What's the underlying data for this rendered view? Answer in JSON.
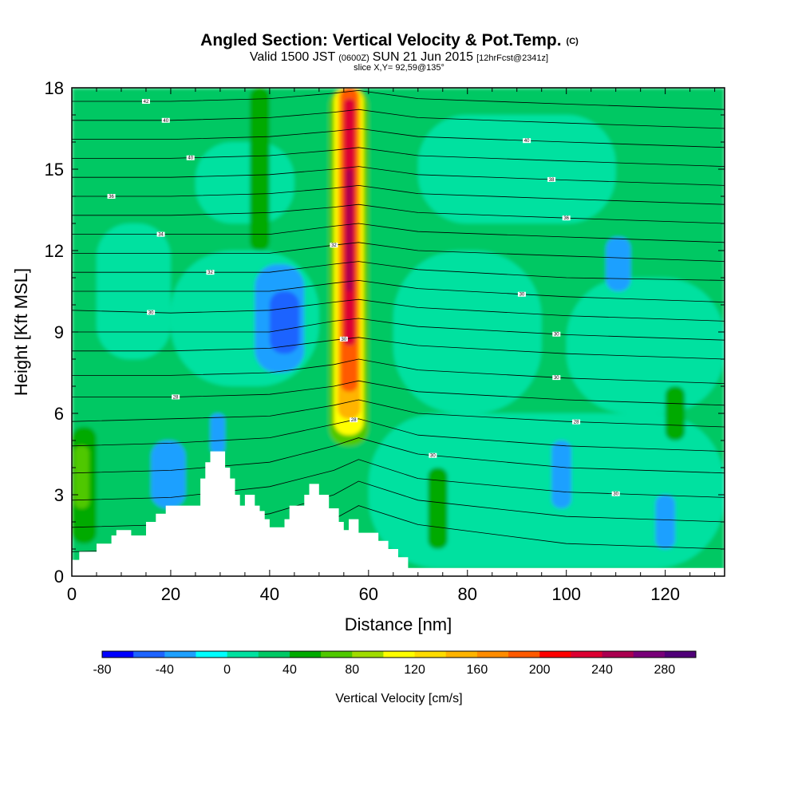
{
  "title": {
    "main": "Angled Section: Vertical Velocity & Pot.Temp.",
    "main_suffix": "(C)",
    "valid_prefix": "Valid 1500 JST",
    "valid_zulu": "(0600Z)",
    "valid_date": "SUN 21 Jun 2015",
    "forecast": "[12hrFcst@2341z]",
    "slice": "slice X,Y= 92,59@135°"
  },
  "chart_data": {
    "type": "heatmap",
    "xlabel": "Distance [nm]",
    "ylabel": "Height [Kft MSL]",
    "xlim": [
      0,
      132
    ],
    "ylim": [
      0,
      18
    ],
    "x_ticks": [
      "0",
      "20",
      "40",
      "60",
      "80",
      "100",
      "120"
    ],
    "x_tick_values": [
      0,
      20,
      40,
      60,
      80,
      100,
      120
    ],
    "y_ticks": [
      "0",
      "3",
      "6",
      "9",
      "12",
      "15",
      "18"
    ],
    "y_tick_values": [
      0,
      3,
      6,
      9,
      12,
      15,
      18
    ],
    "colorbar": {
      "label": "Vertical Velocity [cm/s]",
      "min": -80,
      "max": 300,
      "step": 20,
      "tick_labels": [
        "-80",
        "-40",
        "0",
        "40",
        "80",
        "120",
        "160",
        "200",
        "240",
        "280"
      ],
      "tick_values": [
        -80,
        -40,
        0,
        40,
        80,
        120,
        160,
        200,
        240,
        280
      ],
      "colors": [
        "#0000ff",
        "#1e64ff",
        "#1ea0ff",
        "#00ffff",
        "#00e1a0",
        "#00c864",
        "#00aa00",
        "#50c800",
        "#a0dc00",
        "#ffff00",
        "#ffdc00",
        "#ffb400",
        "#ff8c00",
        "#ff5a00",
        "#ff0000",
        "#dc0032",
        "#aa0050",
        "#780078",
        "#500078"
      ]
    },
    "cells": [
      {
        "x0": 0,
        "x1": 132,
        "y0": 0,
        "y1": 18,
        "v": 30
      },
      {
        "x0": 5,
        "x1": 20,
        "y0": 8,
        "y1": 13,
        "v": 10
      },
      {
        "x0": 20,
        "x1": 50,
        "y0": 7,
        "y1": 12,
        "v": 10
      },
      {
        "x0": 25,
        "x1": 45,
        "y0": 13,
        "y1": 16,
        "v": 10
      },
      {
        "x0": 60,
        "x1": 132,
        "y0": 0.3,
        "y1": 6,
        "v": 10
      },
      {
        "x0": 65,
        "x1": 95,
        "y0": 6,
        "y1": 12,
        "v": 10
      },
      {
        "x0": 100,
        "x1": 132,
        "y0": 6,
        "y1": 11,
        "v": 10
      },
      {
        "x0": 70,
        "x1": 110,
        "y0": 13,
        "y1": 17,
        "v": 10
      },
      {
        "x0": 0,
        "x1": 10,
        "y0": 0.8,
        "y1": 6.5,
        "v": 30
      },
      {
        "x0": 0,
        "x1": 5,
        "y0": 1.2,
        "y1": 5.5,
        "v": 50
      },
      {
        "x0": 0.5,
        "x1": 3.5,
        "y0": 2.5,
        "y1": 4.8,
        "v": 70
      },
      {
        "x0": 37,
        "x1": 47,
        "y0": 7.5,
        "y1": 11.5,
        "v": -30
      },
      {
        "x0": 40,
        "x1": 46,
        "y0": 8.2,
        "y1": 10.5,
        "v": -50
      },
      {
        "x0": 16,
        "x1": 23,
        "y0": 2.5,
        "y1": 5,
        "v": -30
      },
      {
        "x0": 108,
        "x1": 113,
        "y0": 10.5,
        "y1": 12.5,
        "v": -30
      },
      {
        "x0": 97,
        "x1": 101,
        "y0": 2.5,
        "y1": 5,
        "v": -30
      },
      {
        "x0": 118,
        "x1": 122,
        "y0": 1,
        "y1": 3,
        "v": -30
      },
      {
        "x0": 28,
        "x1": 31,
        "y0": 4.5,
        "y1": 6,
        "v": -30
      },
      {
        "x0": 36,
        "x1": 40,
        "y0": 12,
        "y1": 18,
        "v": 50
      },
      {
        "x0": 72,
        "x1": 76,
        "y0": 1,
        "y1": 4,
        "v": 50
      },
      {
        "x0": 120,
        "x1": 124,
        "y0": 5,
        "y1": 7,
        "v": 50
      },
      {
        "x0": 52,
        "x1": 60,
        "y0": 4.8,
        "y1": 18,
        "v": 70
      },
      {
        "x0": 53,
        "x1": 59,
        "y0": 5.2,
        "y1": 18,
        "v": 110
      },
      {
        "x0": 53.8,
        "x1": 58.4,
        "y0": 5.8,
        "y1": 18,
        "v": 150
      },
      {
        "x0": 54.4,
        "x1": 57.8,
        "y0": 6.8,
        "y1": 18,
        "v": 190
      },
      {
        "x0": 55,
        "x1": 57.3,
        "y0": 8.5,
        "y1": 17.6,
        "v": 230
      },
      {
        "x0": 55.5,
        "x1": 56.8,
        "y0": 10.5,
        "y1": 15,
        "v": 250
      }
    ],
    "isentropes": {
      "levels": [
        {
          "x": [
            0,
            20,
            40,
            53,
            58,
            70,
            100,
            132
          ],
          "y": [
            0.9,
            1.0,
            1.4,
            2.1,
            2.6,
            1.9,
            1.2,
            1.0
          ],
          "label": "",
          "label_x": null
        },
        {
          "x": [
            0,
            20,
            40,
            53,
            58,
            70,
            100,
            132
          ],
          "y": [
            1.8,
            1.9,
            2.3,
            3.0,
            3.5,
            2.8,
            2.2,
            2.0
          ],
          "label": "",
          "label_x": null
        },
        {
          "x": [
            0,
            20,
            40,
            53,
            58,
            70,
            100,
            132
          ],
          "y": [
            2.8,
            2.9,
            3.3,
            3.9,
            4.3,
            3.6,
            3.1,
            2.9
          ],
          "label": "30",
          "label_x": 110
        },
        {
          "x": [
            0,
            20,
            40,
            53,
            58,
            70,
            100,
            132
          ],
          "y": [
            3.8,
            3.9,
            4.2,
            4.8,
            5.1,
            4.5,
            4.0,
            3.8
          ],
          "label": "30",
          "label_x": 73
        },
        {
          "x": [
            0,
            20,
            40,
            53,
            58,
            70,
            100,
            132
          ],
          "y": [
            4.8,
            4.9,
            5.1,
            5.6,
            5.8,
            5.2,
            4.8,
            4.6
          ],
          "label": "28",
          "label_x": 57
        },
        {
          "x": [
            0,
            20,
            40,
            53,
            58,
            70,
            100,
            132
          ],
          "y": [
            5.7,
            5.8,
            5.9,
            6.3,
            6.5,
            6.0,
            5.7,
            5.5
          ],
          "label": "28",
          "label_x": 102
        },
        {
          "x": [
            0,
            20,
            40,
            53,
            58,
            70,
            100,
            132
          ],
          "y": [
            6.6,
            6.6,
            6.7,
            7.0,
            7.2,
            6.8,
            6.5,
            6.3
          ],
          "label": "28",
          "label_x": 21
        },
        {
          "x": [
            0,
            20,
            40,
            53,
            58,
            70,
            100,
            132
          ],
          "y": [
            7.4,
            7.4,
            7.5,
            7.8,
            8.0,
            7.6,
            7.3,
            7.1
          ],
          "label": "30",
          "label_x": 98
        },
        {
          "x": [
            0,
            20,
            40,
            53,
            58,
            70,
            100,
            132
          ],
          "y": [
            8.3,
            8.3,
            8.4,
            8.7,
            8.8,
            8.5,
            8.2,
            8.0
          ],
          "label": "30",
          "label_x": 55
        },
        {
          "x": [
            0,
            20,
            40,
            53,
            58,
            70,
            100,
            132
          ],
          "y": [
            9.0,
            9.0,
            9.0,
            9.4,
            9.5,
            9.2,
            8.9,
            8.7
          ],
          "label": "30",
          "label_x": 98
        },
        {
          "x": [
            0,
            20,
            40,
            53,
            58,
            70,
            100,
            132
          ],
          "y": [
            9.8,
            9.7,
            9.8,
            10.1,
            10.2,
            9.9,
            9.6,
            9.4
          ],
          "label": "30",
          "label_x": 16
        },
        {
          "x": [
            0,
            20,
            40,
            53,
            58,
            70,
            100,
            132
          ],
          "y": [
            10.5,
            10.5,
            10.5,
            10.8,
            10.9,
            10.6,
            10.3,
            10.1
          ],
          "label": "30",
          "label_x": 91
        },
        {
          "x": [
            0,
            20,
            40,
            53,
            58,
            70,
            100,
            132
          ],
          "y": [
            11.2,
            11.2,
            11.2,
            11.5,
            11.6,
            11.3,
            11.0,
            10.9
          ],
          "label": "32",
          "label_x": 28
        },
        {
          "x": [
            0,
            20,
            40,
            53,
            58,
            70,
            100,
            132
          ],
          "y": [
            11.9,
            11.9,
            11.9,
            12.2,
            12.3,
            12.0,
            11.8,
            11.6
          ],
          "label": "32",
          "label_x": 53
        },
        {
          "x": [
            0,
            20,
            40,
            53,
            58,
            70,
            100,
            132
          ],
          "y": [
            12.6,
            12.6,
            12.6,
            12.9,
            13.0,
            12.7,
            12.5,
            12.3
          ],
          "label": "34",
          "label_x": 18
        },
        {
          "x": [
            0,
            20,
            40,
            53,
            58,
            70,
            100,
            132
          ],
          "y": [
            13.3,
            13.3,
            13.4,
            13.6,
            13.7,
            13.4,
            13.2,
            13.0
          ],
          "label": "36",
          "label_x": 100
        },
        {
          "x": [
            0,
            20,
            40,
            53,
            58,
            70,
            100,
            132
          ],
          "y": [
            14.0,
            14.0,
            14.1,
            14.3,
            14.4,
            14.1,
            13.9,
            13.7
          ],
          "label": "36",
          "label_x": 8
        },
        {
          "x": [
            0,
            20,
            40,
            53,
            58,
            70,
            100,
            132
          ],
          "y": [
            14.7,
            14.7,
            14.8,
            15.0,
            15.1,
            14.8,
            14.6,
            14.4
          ],
          "label": "38",
          "label_x": 97
        },
        {
          "x": [
            0,
            20,
            40,
            53,
            58,
            70,
            100,
            132
          ],
          "y": [
            15.4,
            15.4,
            15.5,
            15.7,
            15.8,
            15.5,
            15.3,
            15.1
          ],
          "label": "40",
          "label_x": 24
        },
        {
          "x": [
            0,
            20,
            40,
            53,
            58,
            70,
            100,
            132
          ],
          "y": [
            16.1,
            16.1,
            16.2,
            16.4,
            16.5,
            16.2,
            16.0,
            15.8
          ],
          "label": "40",
          "label_x": 92
        },
        {
          "x": [
            0,
            20,
            40,
            53,
            58,
            70,
            100,
            132
          ],
          "y": [
            16.8,
            16.8,
            16.9,
            17.1,
            17.2,
            16.9,
            16.7,
            16.5
          ],
          "label": "40",
          "label_x": 19
        },
        {
          "x": [
            0,
            20,
            40,
            53,
            58,
            70,
            100,
            132
          ],
          "y": [
            17.5,
            17.5,
            17.6,
            17.8,
            17.9,
            17.6,
            17.4,
            17.2
          ],
          "label": "42",
          "label_x": 15
        }
      ]
    },
    "terrain": {
      "x": [
        0,
        0,
        1.5,
        1.5,
        5,
        5,
        8,
        8,
        9,
        9,
        12,
        12,
        15,
        15,
        17,
        17,
        19,
        19,
        26,
        26,
        27,
        27,
        28,
        28,
        31,
        31,
        32,
        32,
        33,
        33,
        34,
        34,
        35,
        35,
        37,
        37,
        38,
        38,
        39,
        39,
        40,
        40,
        43,
        43,
        44,
        44,
        47,
        47,
        48,
        48,
        50,
        50,
        52,
        52,
        54,
        54,
        55,
        55,
        56,
        56,
        58,
        58,
        62,
        62,
        64,
        64,
        66,
        66,
        68,
        68,
        72,
        72,
        132,
        132
      ],
      "y": [
        0,
        0.6,
        0.6,
        0.9,
        0.9,
        1.2,
        1.2,
        1.5,
        1.5,
        1.7,
        1.7,
        1.5,
        1.5,
        2.0,
        2.0,
        2.3,
        2.3,
        2.6,
        2.6,
        3.6,
        3.6,
        4.2,
        4.2,
        4.6,
        4.6,
        4.0,
        4.0,
        3.6,
        3.6,
        3.0,
        3.0,
        2.6,
        2.6,
        3.0,
        3.0,
        2.6,
        2.6,
        2.4,
        2.4,
        2.1,
        2.1,
        1.8,
        1.8,
        2.1,
        2.1,
        2.6,
        2.6,
        3.0,
        3.0,
        3.4,
        3.4,
        3.0,
        3.0,
        2.5,
        2.5,
        2.0,
        2.0,
        1.7,
        1.7,
        2.1,
        2.1,
        1.6,
        1.6,
        1.3,
        1.3,
        1.0,
        1.0,
        0.7,
        0.7,
        0.3,
        0.3,
        0.3,
        0.3,
        0
      ]
    }
  }
}
